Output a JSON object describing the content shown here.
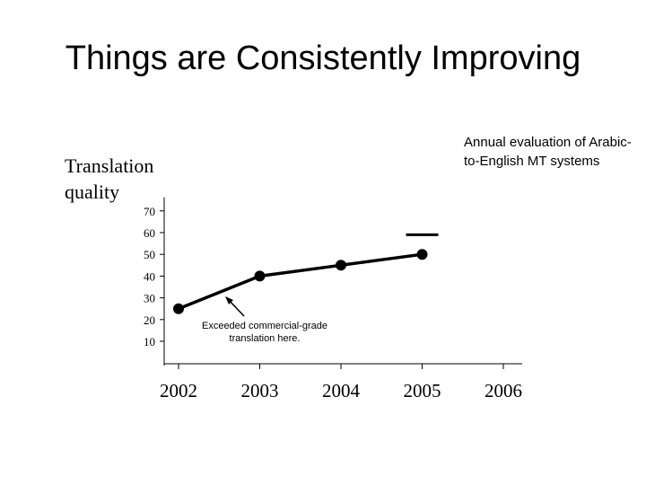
{
  "slide": {
    "title": "Things are Consistently Improving"
  },
  "chart_data": {
    "type": "line",
    "title": "Things are Consistently Improving",
    "ylabel": "Translation quality",
    "xlabel": "",
    "x": [
      "2002",
      "2003",
      "2004",
      "2005",
      "2006"
    ],
    "series": [
      {
        "name": "Arabic-to-English MT",
        "values": [
          25,
          40,
          45,
          50,
          null
        ]
      }
    ],
    "yticks": [
      10,
      20,
      30,
      40,
      50,
      60,
      70
    ],
    "ylim": [
      5,
      75
    ],
    "reference_mark": {
      "x": "2005",
      "y": 59,
      "meaning": "commercial-grade level"
    },
    "annotations": {
      "note": "Annual evaluation of Arabic-to-English MT systems",
      "callout": "Exceeded commercial-grade translation here."
    }
  }
}
